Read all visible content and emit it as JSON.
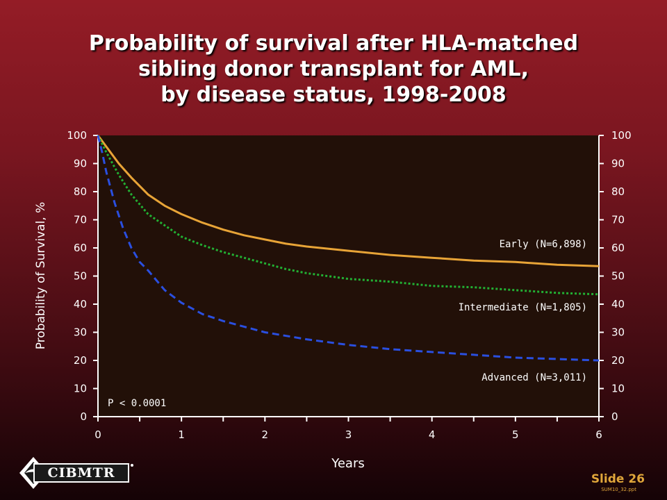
{
  "title": {
    "line1": "Probability of survival after HLA-matched",
    "line2": "sibling donor transplant for AML,",
    "line3": "by disease status, 1998-2008"
  },
  "footer": {
    "logo_text": "CIBMTR",
    "slide": "Slide 26",
    "file": "SUM10_32.ppt"
  },
  "colors": {
    "plot_bg": "#221008",
    "early": "#e8a437",
    "intermediate": "#22b033",
    "advanced": "#2a4fe0"
  },
  "chart_data": {
    "type": "line",
    "xlabel": "Years",
    "ylabel": "Probability of Survival, %",
    "xlim": [
      0,
      6
    ],
    "ylim": [
      0,
      100
    ],
    "x_ticks": [
      "0",
      "1",
      "2",
      "3",
      "4",
      "5",
      "6"
    ],
    "y_ticks": [
      "0",
      "10",
      "20",
      "30",
      "40",
      "50",
      "60",
      "70",
      "80",
      "90",
      "100"
    ],
    "annotation": "P < 0.0001",
    "series": [
      {
        "name": "Early (N=6,898)",
        "style": "solid",
        "x": [
          0,
          0.1,
          0.25,
          0.4,
          0.6,
          0.8,
          1.0,
          1.25,
          1.5,
          1.75,
          2.0,
          2.25,
          2.5,
          3.0,
          3.5,
          4.0,
          4.5,
          5.0,
          5.5,
          6.0
        ],
        "y": [
          100,
          96,
          90,
          85,
          79,
          75,
          72,
          69,
          66.5,
          64.5,
          63,
          61.5,
          60.5,
          59,
          57.5,
          56.5,
          55.5,
          55,
          54,
          53.5
        ]
      },
      {
        "name": "Intermediate (N=1,805)",
        "style": "dotted",
        "x": [
          0,
          0.1,
          0.25,
          0.4,
          0.6,
          0.8,
          1.0,
          1.25,
          1.5,
          1.75,
          2.0,
          2.25,
          2.5,
          3.0,
          3.5,
          4.0,
          4.5,
          5.0,
          5.5,
          6.0
        ],
        "y": [
          100,
          94,
          86,
          79,
          72,
          68,
          64,
          61,
          58.5,
          56.5,
          54.5,
          52.5,
          51,
          49,
          48,
          46.5,
          46,
          45,
          44,
          43.5
        ]
      },
      {
        "name": "Advanced (N=3,011)",
        "style": "dashed",
        "x": [
          0,
          0.05,
          0.1,
          0.2,
          0.3,
          0.4,
          0.5,
          0.6,
          0.8,
          1.0,
          1.25,
          1.5,
          1.75,
          2.0,
          2.5,
          3.0,
          3.5,
          4.0,
          4.5,
          5.0,
          5.5,
          6.0
        ],
        "y": [
          100,
          94,
          87,
          76,
          67,
          60,
          55,
          52,
          45,
          40.5,
          36.5,
          34,
          32,
          30,
          27.5,
          25.5,
          24,
          23,
          22,
          21,
          20.5,
          20
        ]
      }
    ]
  }
}
